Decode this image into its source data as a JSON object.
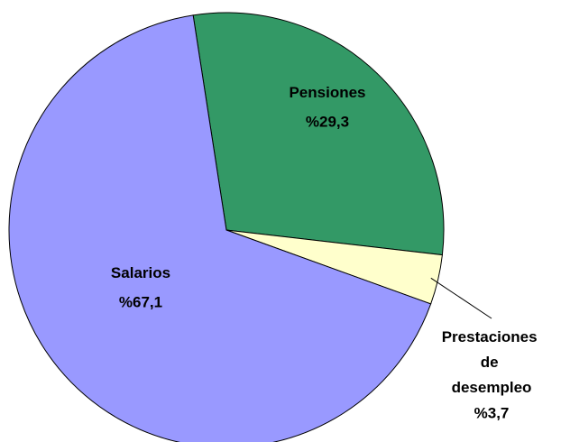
{
  "chart_data": {
    "type": "pie",
    "categories": [
      "Pensiones",
      "Prestaciones de desempleo",
      "Salarios"
    ],
    "values": [
      29.3,
      3.7,
      67.1
    ],
    "value_labels": [
      "%29,3",
      "%3,7",
      "%67,1"
    ],
    "colors": [
      "#339966",
      "#ffffcc",
      "#9999ff"
    ]
  }
}
